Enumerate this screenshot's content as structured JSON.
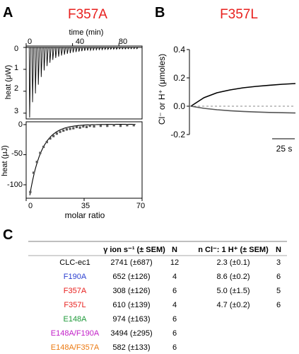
{
  "panel_a": {
    "letter": "A",
    "title": "F357A",
    "title_color": "#e8201e",
    "top": {
      "xlabel": "time (min)",
      "xticks": [
        "0",
        "40",
        "80"
      ],
      "ylabel": "heat (μW)",
      "yticks": [
        "0",
        "1",
        "2",
        "3"
      ]
    },
    "bottom": {
      "xlabel": "molar ratio",
      "xticks": [
        "0",
        "35",
        "70"
      ],
      "ylabel": "heat (μJ)",
      "yticks": [
        "0",
        "-50",
        "-100"
      ]
    }
  },
  "panel_b": {
    "letter": "B",
    "title": "F357L",
    "title_color": "#e8201e",
    "ylabel": "Cl⁻ or H⁺ (μmoles)",
    "yticks": [
      "0.4",
      "0.2",
      "0.0",
      "-0.2"
    ],
    "scalebar": "25 s"
  },
  "panel_c": {
    "letter": "C",
    "headers": [
      "γ ion s⁻¹ (± SEM)",
      "N",
      "n Cl⁻: 1 H⁺ (± SEM)",
      "N"
    ],
    "rows": [
      {
        "name": "CLC-ec1",
        "color": "#000000",
        "rate": "2741 (±687)",
        "n1": "12",
        "ratio": "2.3 (±0.1)",
        "n2": "3"
      },
      {
        "name": "F190A",
        "color": "#2b3fd0",
        "rate": "652 (±126)",
        "n1": "4",
        "ratio": "8.6 (±0.2)",
        "n2": "6"
      },
      {
        "name": "F357A",
        "color": "#e8201e",
        "rate": "308 (±126)",
        "n1": "6",
        "ratio": "5.0 (±1.5)",
        "n2": "5"
      },
      {
        "name": "F357L",
        "color": "#e8201e",
        "rate": "610 (±139)",
        "n1": "4",
        "ratio": "4.7 (±0.2)",
        "n2": "6"
      },
      {
        "name": "E148A",
        "color": "#1f9a3a",
        "rate": "974 (±163)",
        "n1": "6",
        "ratio": "",
        "n2": ""
      },
      {
        "name": "E148A/F190A",
        "color": "#c21fc8",
        "rate": "3494 (±295)",
        "n1": "6",
        "ratio": "",
        "n2": ""
      },
      {
        "name": "E148A/F357A",
        "color": "#ec7a12",
        "rate": "582 (±133)",
        "n1": "6",
        "ratio": "",
        "n2": ""
      }
    ]
  },
  "chart_data": [
    {
      "type": "line",
      "title": "F357A",
      "xlabel": "time (min)",
      "ylabel": "heat (μW)",
      "xlim": [
        0,
        100
      ],
      "ylim": [
        3.2,
        0
      ],
      "injection_times_min": [
        3,
        5.5,
        8,
        10.5,
        13,
        15.5,
        18,
        20.5,
        23,
        25.5,
        28,
        30.5,
        33,
        35.5,
        38,
        40.5,
        43,
        45.5,
        48,
        50.5,
        53,
        55.5,
        58,
        60.5,
        63,
        65.5,
        68,
        70.5,
        73,
        75.5,
        78,
        80.5,
        83,
        85.5,
        88,
        90.5,
        93,
        95.5
      ],
      "peak_heights_uW": [
        3.2,
        2.5,
        2.1,
        1.7,
        1.35,
        1.05,
        0.85,
        0.7,
        0.57,
        0.48,
        0.42,
        0.37,
        0.33,
        0.29,
        0.26,
        0.23,
        0.21,
        0.19,
        0.17,
        0.15,
        0.14,
        0.13,
        0.12,
        0.11,
        0.1,
        0.1,
        0.09,
        0.09,
        0.08,
        0.08,
        0.08,
        0.07,
        0.07,
        0.07,
        0.06,
        0.06,
        0.06,
        0.06
      ]
    },
    {
      "type": "scatter",
      "xlabel": "molar ratio",
      "ylabel": "heat (μJ)",
      "xlim": [
        0,
        70
      ],
      "ylim": [
        -120,
        0
      ],
      "x": [
        2.5,
        4.5,
        6.5,
        8.5,
        10.5,
        12.5,
        14.5,
        16.5,
        18.5,
        20.5,
        22.5,
        24.5,
        26.5,
        28.5,
        30.5,
        32.5,
        34.5,
        36.5,
        38.5,
        41,
        45,
        49,
        53,
        57,
        61,
        65
      ],
      "y": [
        -112,
        -80,
        -62,
        -47,
        -37,
        -29,
        -23,
        -19,
        -15,
        -12,
        -10,
        -8,
        -7,
        -6,
        -4,
        -5,
        -3,
        -4,
        -2,
        -3,
        -2,
        -2,
        -1,
        -2,
        -1,
        -1
      ]
    },
    {
      "type": "line",
      "title": "F357L",
      "ylabel": "Cl⁻ or H⁺ (μmoles)",
      "ylim": [
        -0.2,
        0.4
      ],
      "series": [
        {
          "values": [
            0.0,
            0.06,
            0.095,
            0.115,
            0.13,
            0.14,
            0.148,
            0.155,
            0.16
          ]
        },
        {
          "values": [
            0.0,
            -0.015,
            -0.025,
            -0.032,
            -0.037,
            -0.041,
            -0.044,
            -0.046,
            -0.048
          ]
        }
      ]
    }
  ]
}
